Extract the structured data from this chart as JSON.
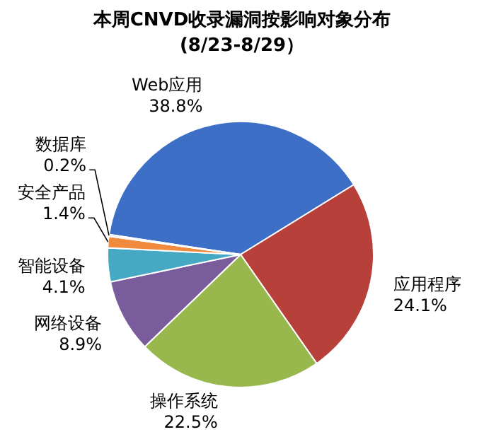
{
  "chart_data": {
    "type": "pie",
    "title": "本周CNVD收录漏洞按影响对象分布",
    "subtitle": "(8/23-8/29）",
    "categories": [
      "Web应用",
      "应用程序",
      "操作系统",
      "网络设备",
      "智能设备",
      "安全产品",
      "数据库"
    ],
    "values": [
      38.8,
      24.1,
      22.5,
      8.9,
      4.1,
      1.4,
      0.2
    ],
    "value_labels": [
      "38.8%",
      "24.1%",
      "22.5%",
      "8.9%",
      "4.1%",
      "1.4%",
      "0.2%"
    ],
    "colors": [
      "#3d6fc6",
      "#b8403a",
      "#98b84e",
      "#7a5c9c",
      "#46a9c4",
      "#f08a3c",
      "#4f81bd"
    ]
  }
}
